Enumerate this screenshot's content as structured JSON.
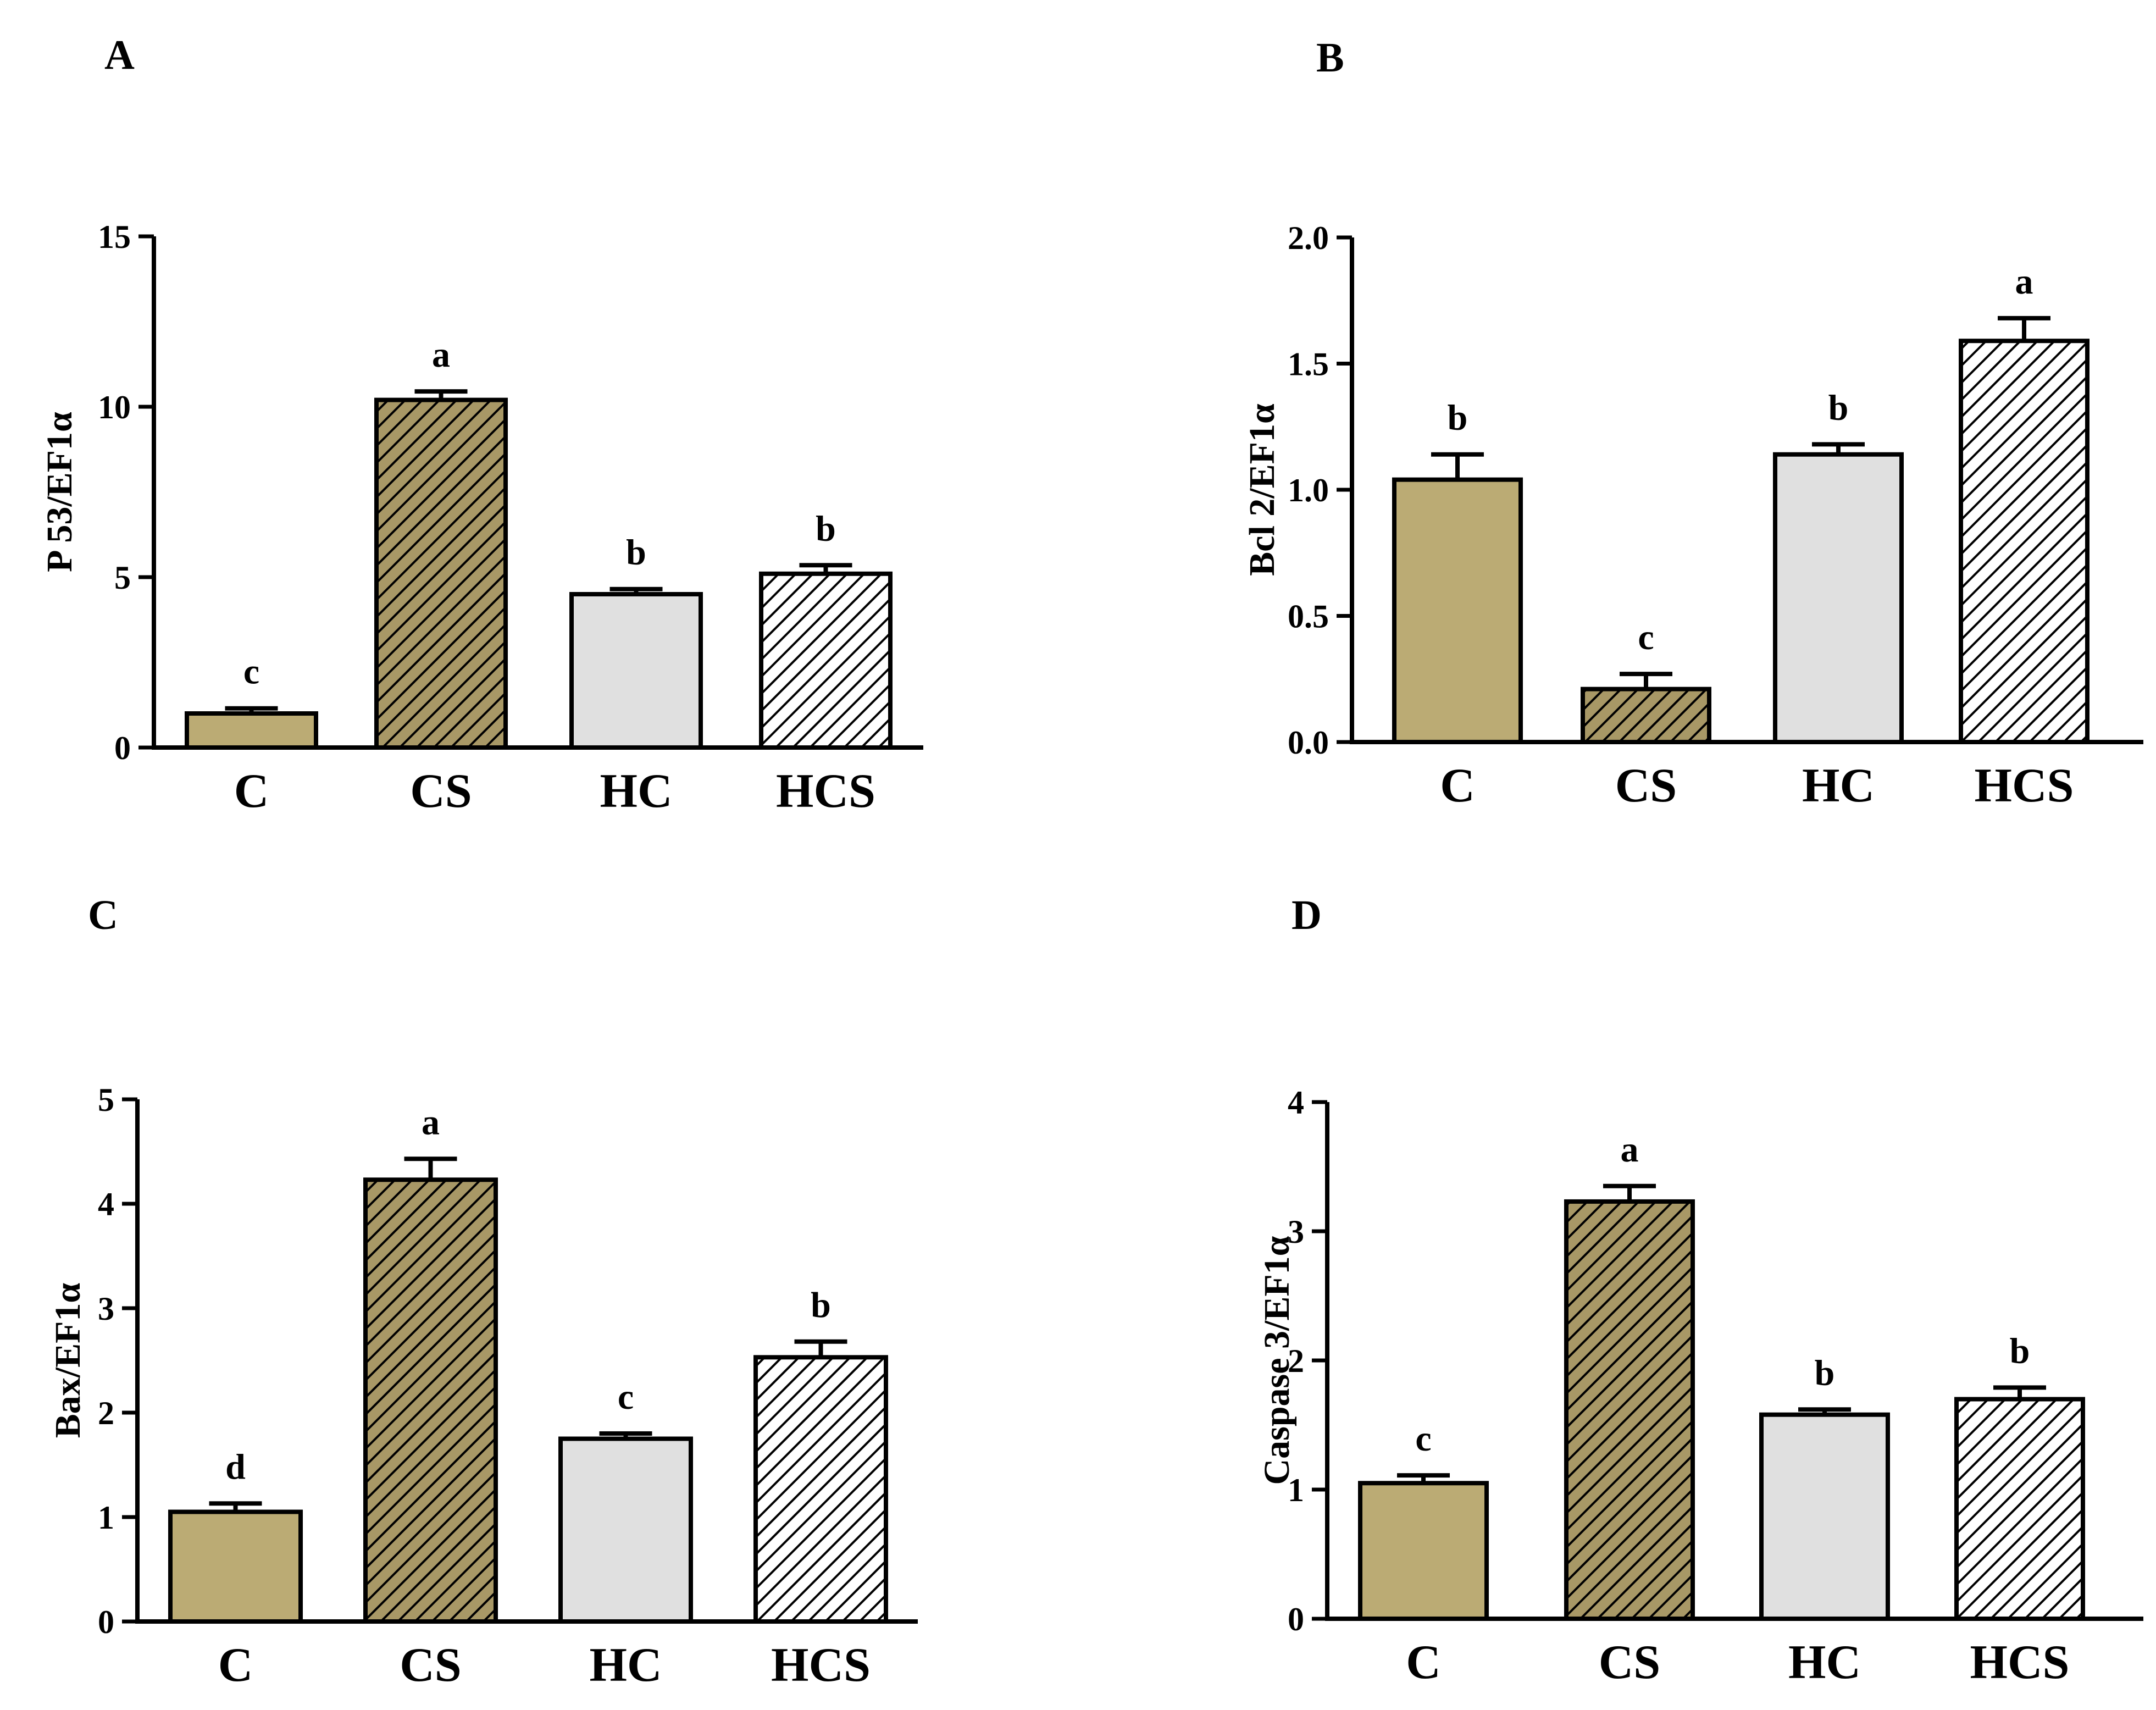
{
  "colors": {
    "gold": "#BBAB74",
    "gold_hatch_bg": "#A89866",
    "light_gray": "#E0E0E0",
    "white": "#FFFFFF",
    "black": "#000000"
  },
  "chart_data": [
    {
      "panel": "A",
      "type": "bar",
      "title": "",
      "ylabel": "P 53/EF1α",
      "xlabel": "",
      "categories": [
        "C",
        "CS",
        "HC",
        "HCS"
      ],
      "values": [
        1.0,
        10.2,
        4.5,
        5.1
      ],
      "errors": [
        0.15,
        0.25,
        0.15,
        0.25
      ],
      "significance": [
        "c",
        "a",
        "b",
        "b"
      ],
      "ylim": [
        0,
        15
      ],
      "yticks": [
        0,
        5,
        10,
        15
      ],
      "ytick_labels": [
        "0",
        "5",
        "10",
        "15"
      ],
      "legend": "none"
    },
    {
      "panel": "B",
      "type": "bar",
      "title": "",
      "ylabel": "Bcl 2/EF1α",
      "xlabel": "",
      "categories": [
        "C",
        "CS",
        "HC",
        "HCS"
      ],
      "values": [
        1.04,
        0.21,
        1.14,
        1.59
      ],
      "errors": [
        0.1,
        0.06,
        0.04,
        0.09
      ],
      "significance": [
        "b",
        "c",
        "b",
        "a"
      ],
      "ylim": [
        0,
        2.0
      ],
      "yticks": [
        0,
        0.5,
        1.0,
        1.5,
        2.0
      ],
      "ytick_labels": [
        "0.0",
        "0.5",
        "1.0",
        "1.5",
        "2.0"
      ],
      "legend": "none"
    },
    {
      "panel": "C",
      "type": "bar",
      "title": "",
      "ylabel": "Bax/EF1α",
      "xlabel": "",
      "categories": [
        "C",
        "CS",
        "HC",
        "HCS"
      ],
      "values": [
        1.05,
        4.23,
        1.75,
        2.53
      ],
      "errors": [
        0.08,
        0.2,
        0.05,
        0.15
      ],
      "significance": [
        "d",
        "a",
        "c",
        "b"
      ],
      "ylim": [
        0,
        5
      ],
      "yticks": [
        0,
        1,
        2,
        3,
        4,
        5
      ],
      "ytick_labels": [
        "0",
        "1",
        "2",
        "3",
        "4",
        "5"
      ],
      "legend": "none"
    },
    {
      "panel": "D",
      "type": "bar",
      "title": "",
      "ylabel": "Caspase 3/EF1α",
      "xlabel": "",
      "categories": [
        "C",
        "CS",
        "HC",
        "HCS"
      ],
      "values": [
        1.05,
        3.23,
        1.58,
        1.7
      ],
      "errors": [
        0.06,
        0.12,
        0.04,
        0.09
      ],
      "significance": [
        "c",
        "a",
        "b",
        "b"
      ],
      "ylim": [
        0,
        4
      ],
      "yticks": [
        0,
        1,
        2,
        3,
        4
      ],
      "ytick_labels": [
        "0",
        "1",
        "2",
        "3",
        "4"
      ],
      "legend": "none"
    }
  ]
}
